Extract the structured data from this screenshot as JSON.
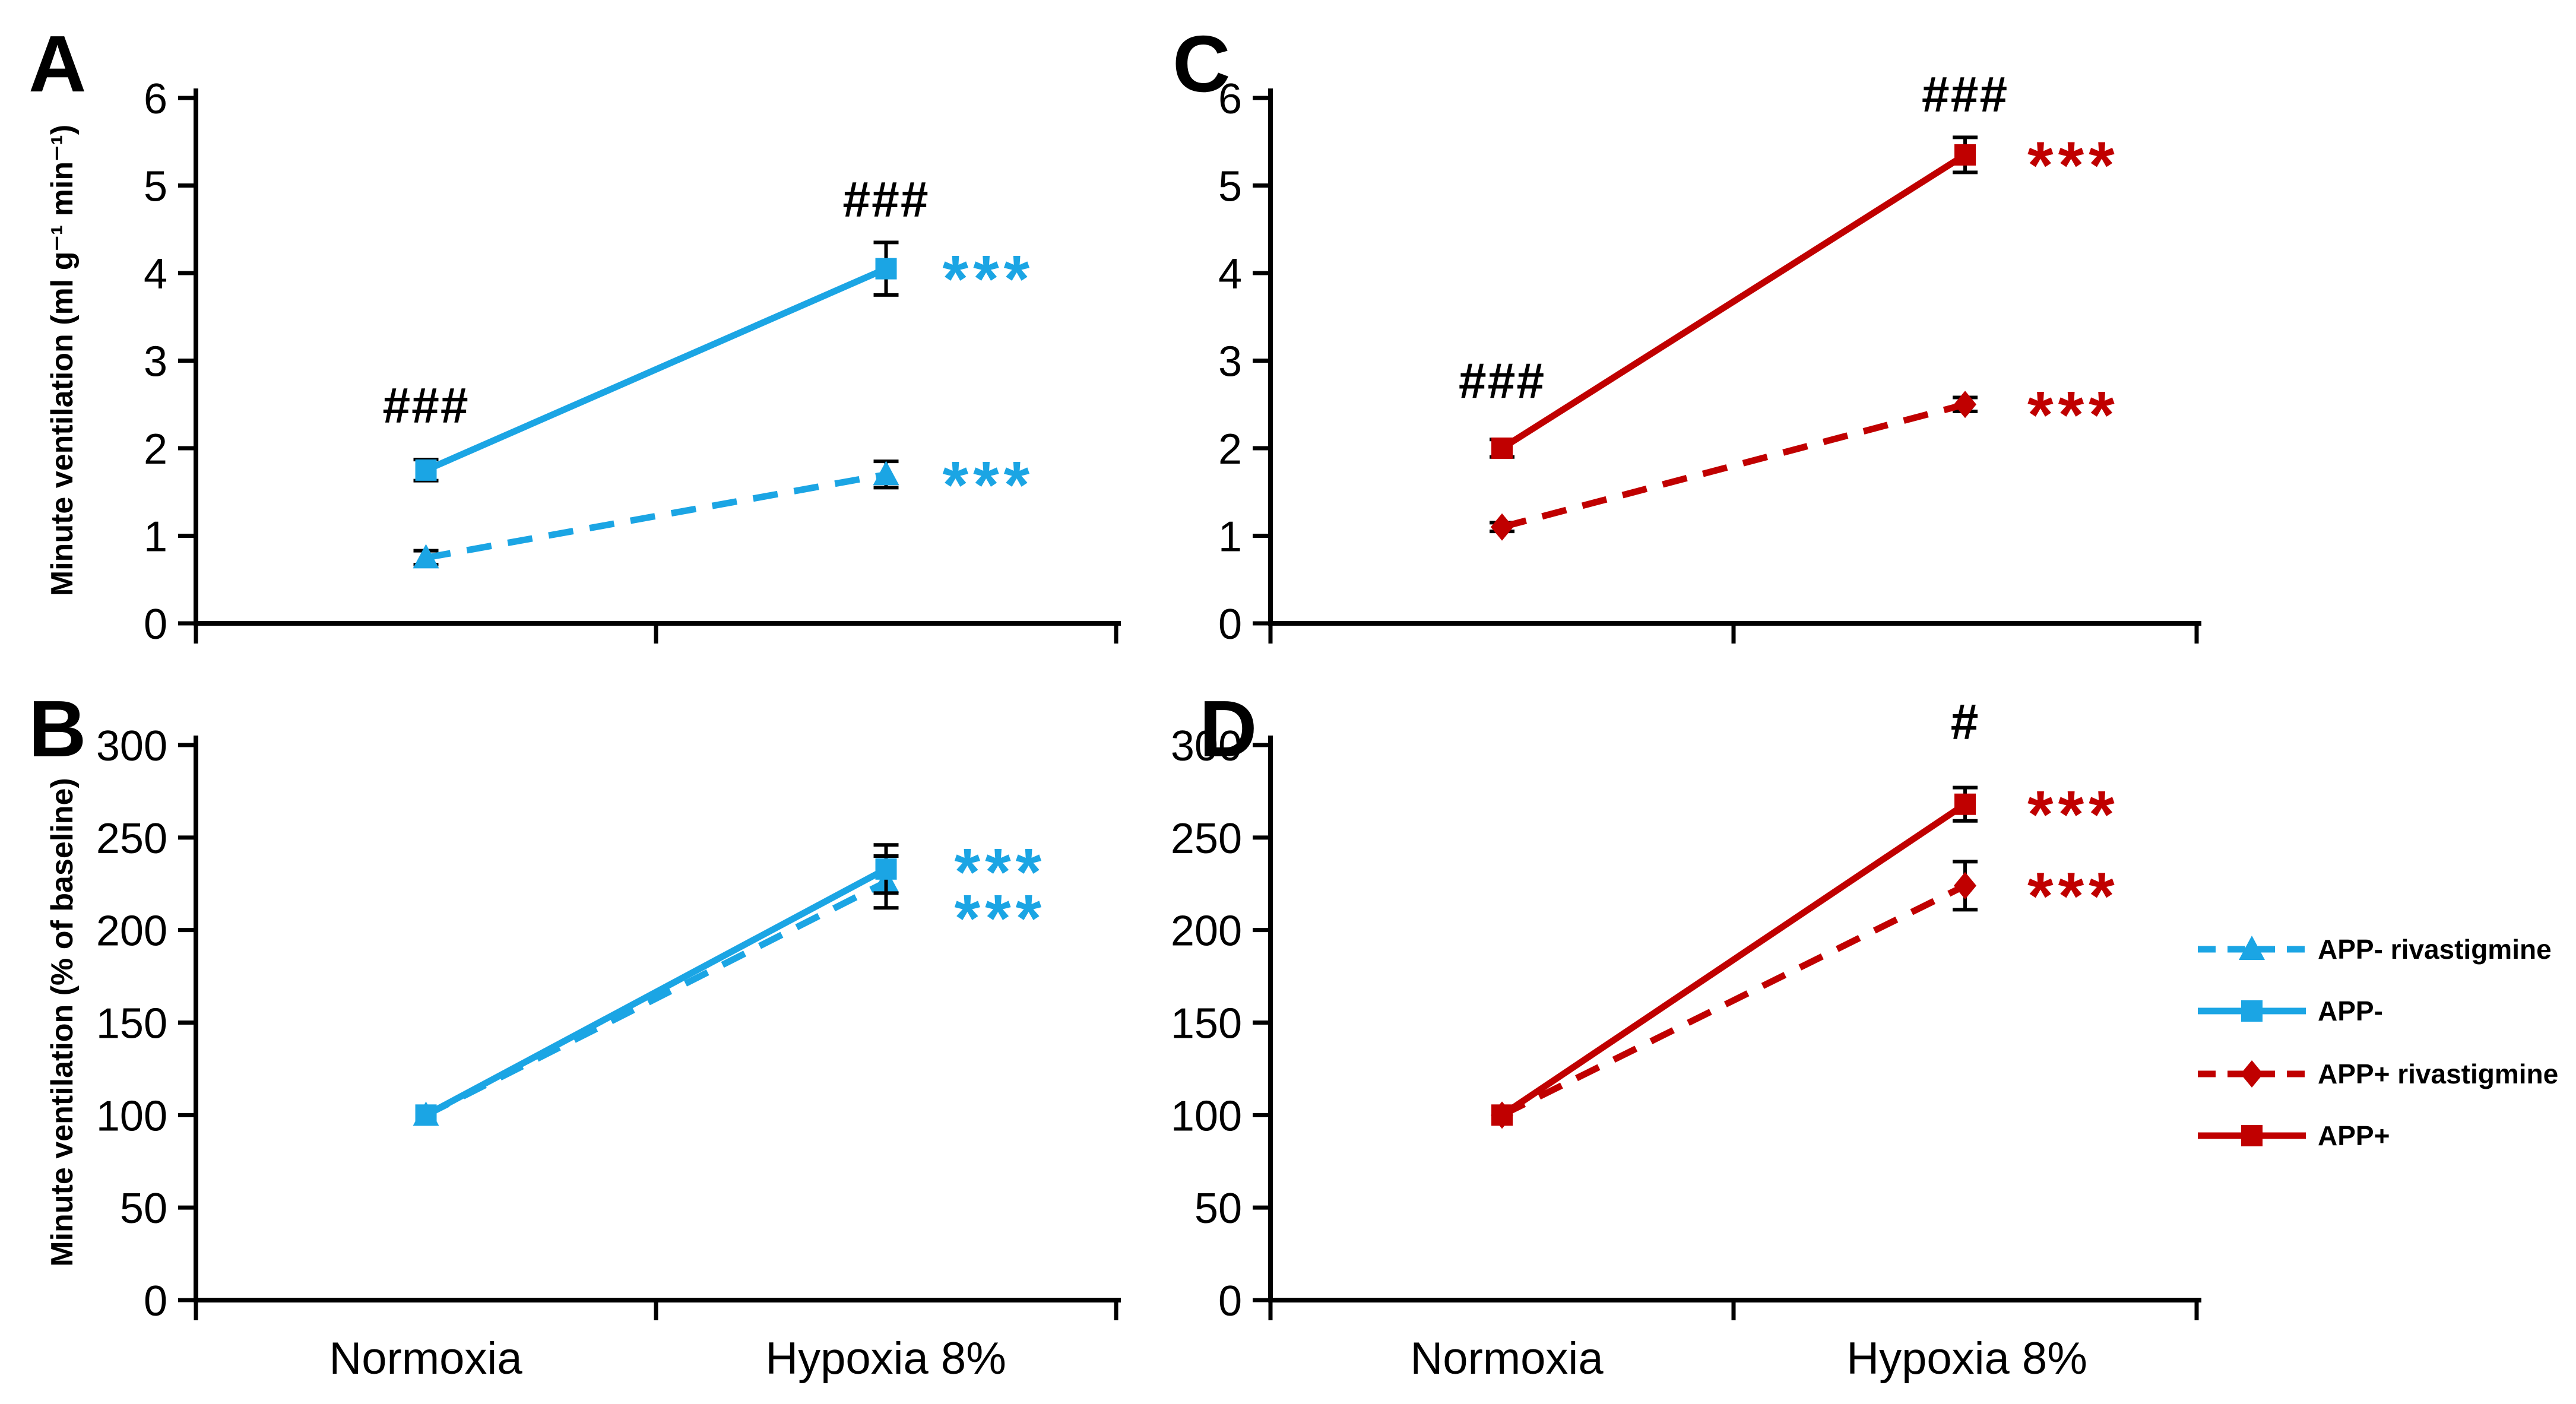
{
  "chart_data": {
    "type": "line",
    "title": "",
    "xlabel": "",
    "colors": {
      "blue": "#1BA5E4",
      "red": "#C00000",
      "black": "#000000"
    },
    "panels": [
      {
        "id": "A",
        "label": "A",
        "ylabel": "Minute ventilation (ml g⁻¹ min⁻¹)",
        "ylim": [
          0,
          6
        ],
        "yticks": [
          0,
          1,
          2,
          3,
          4,
          5,
          6
        ],
        "categories": [
          "Normoxia",
          "Hypoxia 8%"
        ],
        "show_x_labels": false,
        "series": [
          {
            "name": "APP- rivastigmine",
            "color": "blue",
            "dash": true,
            "marker": "triangle",
            "values": [
              0.75,
              1.7
            ],
            "errors": [
              0.08,
              0.15
            ]
          },
          {
            "name": "APP-",
            "color": "blue",
            "dash": false,
            "marker": "square",
            "values": [
              1.75,
              4.05
            ],
            "errors": [
              0.12,
              0.3
            ]
          }
        ],
        "annotations": [
          {
            "text": "###",
            "color": "black",
            "cat": 0,
            "value": 2.5,
            "dx": 0,
            "anchor": "middle"
          },
          {
            "text": "###",
            "color": "black",
            "cat": 1,
            "value": 4.85,
            "dx": 0,
            "anchor": "middle"
          },
          {
            "text": "***",
            "color": "blue",
            "cat": 1,
            "value": 4.05,
            "dx": 95,
            "anchor": "start"
          },
          {
            "text": "***",
            "color": "blue",
            "cat": 1,
            "value": 1.7,
            "dx": 95,
            "anchor": "start"
          }
        ]
      },
      {
        "id": "B",
        "label": "B",
        "ylabel": "Minute ventilation (% of baseline)",
        "ylim": [
          0,
          300
        ],
        "yticks": [
          0,
          50,
          100,
          150,
          200,
          250,
          300
        ],
        "categories": [
          "Normoxia",
          "Hypoxia 8%"
        ],
        "show_x_labels": true,
        "series": [
          {
            "name": "APP- rivastigmine",
            "color": "blue",
            "dash": true,
            "marker": "triangle",
            "values": [
              100,
              226
            ],
            "errors": [
              0,
              14
            ]
          },
          {
            "name": "APP-",
            "color": "blue",
            "dash": false,
            "marker": "square",
            "values": [
              100,
              233
            ],
            "errors": [
              0,
              13
            ]
          }
        ],
        "annotations": [
          {
            "text": "***",
            "color": "blue",
            "cat": 1,
            "value": 237,
            "dx": 115,
            "anchor": "start"
          },
          {
            "text": "***",
            "color": "blue",
            "cat": 1,
            "value": 212,
            "dx": 115,
            "anchor": "start"
          }
        ]
      },
      {
        "id": "C",
        "label": "C",
        "ylabel": "",
        "ylim": [
          0,
          6
        ],
        "yticks": [
          0,
          1,
          2,
          3,
          4,
          5,
          6
        ],
        "categories": [
          "Normoxia",
          "Hypoxia 8%"
        ],
        "show_x_labels": false,
        "series": [
          {
            "name": "APP+ rivastigmine",
            "color": "red",
            "dash": true,
            "marker": "diamond",
            "values": [
              1.1,
              2.5
            ],
            "errors": [
              0.05,
              0.08
            ]
          },
          {
            "name": "APP+",
            "color": "red",
            "dash": false,
            "marker": "square",
            "values": [
              2.0,
              5.35
            ],
            "errors": [
              0.1,
              0.2
            ]
          }
        ],
        "annotations": [
          {
            "text": "###",
            "color": "black",
            "cat": 0,
            "value": 2.78,
            "dx": 0,
            "anchor": "middle"
          },
          {
            "text": "###",
            "color": "black",
            "cat": 1,
            "value": 6.05,
            "dx": 0,
            "anchor": "middle"
          },
          {
            "text": "***",
            "color": "red",
            "cat": 1,
            "value": 5.35,
            "dx": 105,
            "anchor": "start"
          },
          {
            "text": "***",
            "color": "red",
            "cat": 1,
            "value": 2.5,
            "dx": 105,
            "anchor": "start"
          }
        ]
      },
      {
        "id": "D",
        "label": "D",
        "ylabel": "",
        "ylim": [
          0,
          300
        ],
        "yticks": [
          0,
          50,
          100,
          150,
          200,
          250,
          300
        ],
        "categories": [
          "Normoxia",
          "Hypoxia 8%"
        ],
        "show_x_labels": true,
        "series": [
          {
            "name": "APP+ rivastigmine",
            "color": "red",
            "dash": true,
            "marker": "diamond",
            "values": [
              100,
              224
            ],
            "errors": [
              0,
              13
            ]
          },
          {
            "name": "APP+",
            "color": "red",
            "dash": false,
            "marker": "square",
            "values": [
              100,
              268
            ],
            "errors": [
              0,
              9
            ]
          }
        ],
        "annotations": [
          {
            "text": "#",
            "color": "black",
            "cat": 1,
            "value": 313,
            "dx": 0,
            "anchor": "middle"
          },
          {
            "text": "***",
            "color": "red",
            "cat": 1,
            "value": 268,
            "dx": 105,
            "anchor": "start"
          },
          {
            "text": "***",
            "color": "red",
            "cat": 1,
            "value": 224,
            "dx": 105,
            "anchor": "start"
          }
        ]
      }
    ],
    "legend": {
      "items": [
        {
          "label": "APP- rivastigmine",
          "color": "blue",
          "dash": true,
          "marker": "triangle"
        },
        {
          "label": "APP-",
          "color": "blue",
          "dash": false,
          "marker": "square"
        },
        {
          "label": "APP+ rivastigmine",
          "color": "red",
          "dash": true,
          "marker": "diamond"
        },
        {
          "label": "APP+",
          "color": "red",
          "dash": false,
          "marker": "square"
        }
      ]
    }
  }
}
